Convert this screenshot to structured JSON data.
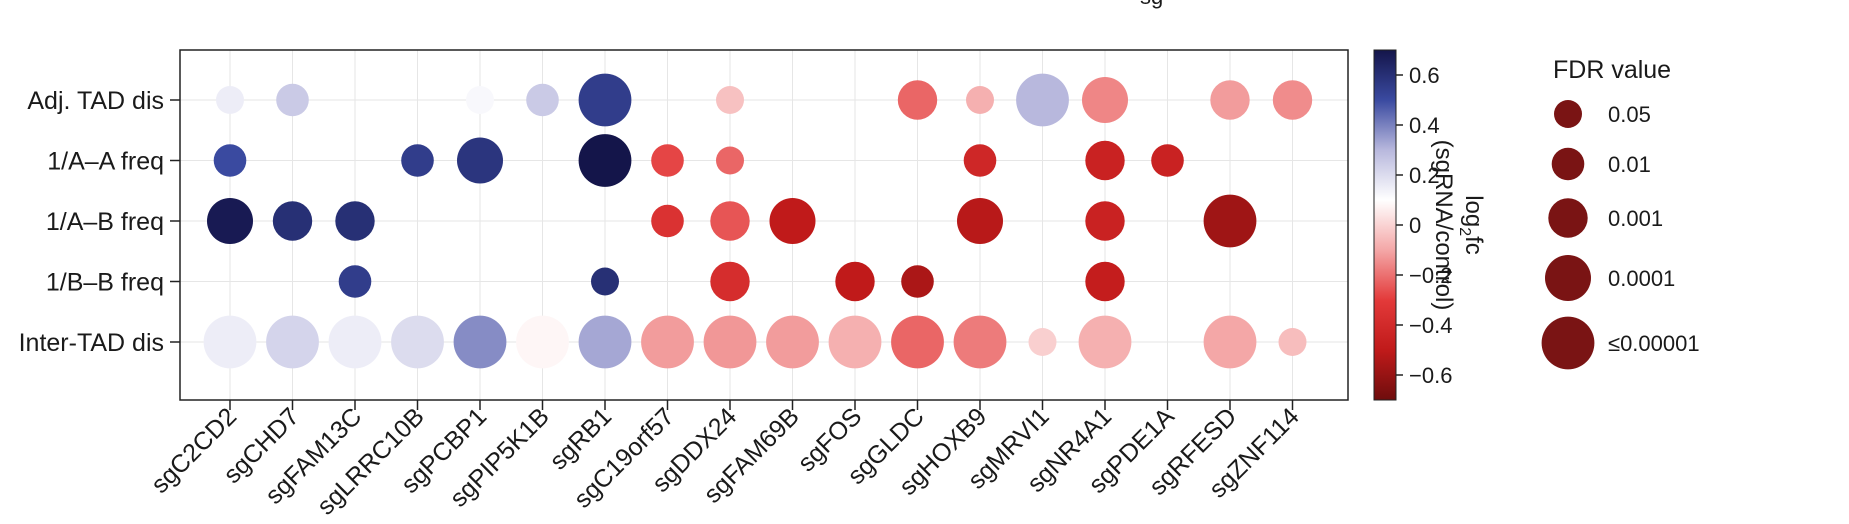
{
  "chart_data": {
    "type": "scatter",
    "top_fragment": "sg",
    "categories": [
      "sgC2CD2",
      "sgCHD7",
      "sgFAM13C",
      "sgLRRC10B",
      "sgPCBP1",
      "sgPIP5K1B",
      "sgRB1",
      "sgC19orf57",
      "sgDDX24",
      "sgFAM69B",
      "sgFOS",
      "sgGLDC",
      "sgHOXB9",
      "sgMRVI1",
      "sgNR4A1",
      "sgPDE1A",
      "sgRFESD",
      "sgZNF114"
    ],
    "rows": [
      "Adj. TAD dis",
      "1/A–A freq",
      "1/A–B freq",
      "1/B–B freq",
      "Inter-TAD dis"
    ],
    "points": [
      {
        "row": 0,
        "col": 0,
        "fc": 0.15,
        "fdr": 0.05
      },
      {
        "row": 0,
        "col": 1,
        "fc": 0.25,
        "fdr": 0.01
      },
      {
        "row": 0,
        "col": 4,
        "fc": 0.12,
        "fdr": 0.05
      },
      {
        "row": 0,
        "col": 5,
        "fc": 0.25,
        "fdr": 0.01
      },
      {
        "row": 0,
        "col": 6,
        "fc": 0.55,
        "fdr": 1e-05
      },
      {
        "row": 0,
        "col": 8,
        "fc": -0.04,
        "fdr": 0.05
      },
      {
        "row": 0,
        "col": 11,
        "fc": -0.22,
        "fdr": 0.001
      },
      {
        "row": 0,
        "col": 12,
        "fc": -0.08,
        "fdr": 0.05
      },
      {
        "row": 0,
        "col": 13,
        "fc": 0.3,
        "fdr": 1e-05
      },
      {
        "row": 0,
        "col": 14,
        "fc": -0.16,
        "fdr": 0.0001
      },
      {
        "row": 0,
        "col": 16,
        "fc": -0.12,
        "fdr": 0.001
      },
      {
        "row": 0,
        "col": 17,
        "fc": -0.15,
        "fdr": 0.001
      },
      {
        "row": 1,
        "col": 0,
        "fc": 0.5,
        "fdr": 0.01
      },
      {
        "row": 1,
        "col": 3,
        "fc": 0.55,
        "fdr": 0.01
      },
      {
        "row": 1,
        "col": 4,
        "fc": 0.58,
        "fdr": 0.0001
      },
      {
        "row": 1,
        "col": 6,
        "fc": 0.7,
        "fdr": 1e-05
      },
      {
        "row": 1,
        "col": 7,
        "fc": -0.28,
        "fdr": 0.01
      },
      {
        "row": 1,
        "col": 8,
        "fc": -0.22,
        "fdr": 0.05
      },
      {
        "row": 1,
        "col": 12,
        "fc": -0.42,
        "fdr": 0.01
      },
      {
        "row": 1,
        "col": 14,
        "fc": -0.45,
        "fdr": 0.001
      },
      {
        "row": 1,
        "col": 15,
        "fc": -0.45,
        "fdr": 0.01
      },
      {
        "row": 2,
        "col": 0,
        "fc": 0.68,
        "fdr": 0.0001
      },
      {
        "row": 2,
        "col": 1,
        "fc": 0.6,
        "fdr": 0.001
      },
      {
        "row": 2,
        "col": 2,
        "fc": 0.6,
        "fdr": 0.001
      },
      {
        "row": 2,
        "col": 7,
        "fc": -0.35,
        "fdr": 0.01
      },
      {
        "row": 2,
        "col": 8,
        "fc": -0.25,
        "fdr": 0.001
      },
      {
        "row": 2,
        "col": 9,
        "fc": -0.5,
        "fdr": 0.0001
      },
      {
        "row": 2,
        "col": 12,
        "fc": -0.52,
        "fdr": 0.0001
      },
      {
        "row": 2,
        "col": 14,
        "fc": -0.45,
        "fdr": 0.001
      },
      {
        "row": 2,
        "col": 16,
        "fc": -0.58,
        "fdr": 1e-05
      },
      {
        "row": 3,
        "col": 2,
        "fc": 0.55,
        "fdr": 0.01
      },
      {
        "row": 3,
        "col": 6,
        "fc": 0.6,
        "fdr": 0.05
      },
      {
        "row": 3,
        "col": 8,
        "fc": -0.38,
        "fdr": 0.001
      },
      {
        "row": 3,
        "col": 10,
        "fc": -0.5,
        "fdr": 0.001
      },
      {
        "row": 3,
        "col": 11,
        "fc": -0.55,
        "fdr": 0.01
      },
      {
        "row": 3,
        "col": 14,
        "fc": -0.48,
        "fdr": 0.001
      },
      {
        "row": 4,
        "col": 0,
        "fc": 0.15,
        "fdr": 1e-05
      },
      {
        "row": 4,
        "col": 1,
        "fc": 0.22,
        "fdr": 1e-05
      },
      {
        "row": 4,
        "col": 2,
        "fc": 0.15,
        "fdr": 1e-05
      },
      {
        "row": 4,
        "col": 3,
        "fc": 0.2,
        "fdr": 1e-05
      },
      {
        "row": 4,
        "col": 4,
        "fc": 0.38,
        "fdr": 1e-05
      },
      {
        "row": 4,
        "col": 5,
        "fc": 0.08,
        "fdr": 1e-05
      },
      {
        "row": 4,
        "col": 6,
        "fc": 0.33,
        "fdr": 1e-05
      },
      {
        "row": 4,
        "col": 7,
        "fc": -0.12,
        "fdr": 1e-05
      },
      {
        "row": 4,
        "col": 8,
        "fc": -0.13,
        "fdr": 1e-05
      },
      {
        "row": 4,
        "col": 9,
        "fc": -0.12,
        "fdr": 1e-05
      },
      {
        "row": 4,
        "col": 10,
        "fc": -0.08,
        "fdr": 1e-05
      },
      {
        "row": 4,
        "col": 11,
        "fc": -0.22,
        "fdr": 1e-05
      },
      {
        "row": 4,
        "col": 12,
        "fc": -0.18,
        "fdr": 1e-05
      },
      {
        "row": 4,
        "col": 13,
        "fc": -0.01,
        "fdr": 0.05
      },
      {
        "row": 4,
        "col": 14,
        "fc": -0.08,
        "fdr": 1e-05
      },
      {
        "row": 4,
        "col": 16,
        "fc": -0.1,
        "fdr": 1e-05
      },
      {
        "row": 4,
        "col": 17,
        "fc": -0.05,
        "fdr": 0.05
      }
    ],
    "colorbar": {
      "min": -0.7,
      "max": 0.7,
      "ticks": [
        0.6,
        0.4,
        0.2,
        0,
        -0.2,
        -0.4,
        -0.6
      ],
      "tick_labels": [
        "0.6",
        "0.4",
        "0.2",
        "0",
        "−0.2",
        "−0.4",
        "−0.6"
      ],
      "label_line1": "log",
      "label_sub": "2",
      "label_suffix": "fc",
      "label_line2": "(sgRNA/control)",
      "color_stops": [
        "#6e0d0d",
        "#c01a1a",
        "#e33a3a",
        "#f4a7a7",
        "#ffffff",
        "#b8b8dd",
        "#3a4aa0",
        "#14154a"
      ]
    },
    "legend": {
      "title": "FDR value",
      "items": [
        {
          "label": "0.05",
          "fdr": 0.05
        },
        {
          "label": "0.01",
          "fdr": 0.01
        },
        {
          "label": "0.001",
          "fdr": 0.001
        },
        {
          "label": "0.0001",
          "fdr": 0.0001
        },
        {
          "label": "≤0.00001",
          "fdr": 1e-05
        }
      ],
      "color": "#7a1414"
    },
    "grid": true
  }
}
